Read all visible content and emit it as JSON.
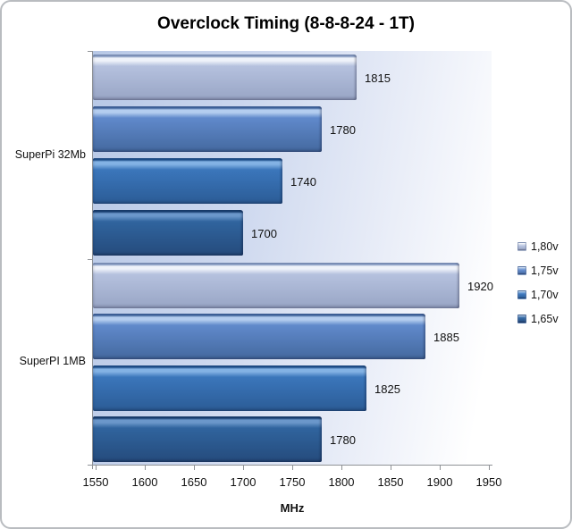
{
  "chart_data": {
    "type": "bar",
    "orientation": "horizontal",
    "title": "Overclock Timing (8-8-8-24 - 1T)",
    "xlabel": "MHz",
    "xlim": [
      1550,
      1950
    ],
    "xticks": [
      1550,
      1600,
      1650,
      1700,
      1750,
      1800,
      1850,
      1900,
      1950
    ],
    "categories": [
      "SuperPi 32Mb",
      "SuperPI 1MB"
    ],
    "series": [
      {
        "name": "1,80v",
        "values": [
          1815,
          1920
        ],
        "colors": {
          "edge": "#8096be",
          "highlight": "#eff3fa",
          "body_top": "#b5c1de",
          "body_bottom": "#98a5c5"
        }
      },
      {
        "name": "1,75v",
        "values": [
          1780,
          1885
        ],
        "colors": {
          "edge": "#40639c",
          "highlight": "#b4cdef",
          "body_top": "#6089cb",
          "body_bottom": "#44699f"
        }
      },
      {
        "name": "1,70v",
        "values": [
          1740,
          1825
        ],
        "colors": {
          "edge": "#1f4f8a",
          "highlight": "#83b2e4",
          "body_top": "#3b76bb",
          "body_bottom": "#2b5c96"
        }
      },
      {
        "name": "1,65v",
        "values": [
          1700,
          1780
        ],
        "colors": {
          "edge": "#1a3f70",
          "highlight": "#6b97ca",
          "body_top": "#30649e",
          "body_bottom": "#254b7c"
        }
      }
    ],
    "data_labels": true,
    "legend_position": "right",
    "grid": false,
    "axis_color": "#8f9296",
    "plot_bg_left": "#b7c8e6",
    "plot_bg_right": "#ffffff"
  }
}
